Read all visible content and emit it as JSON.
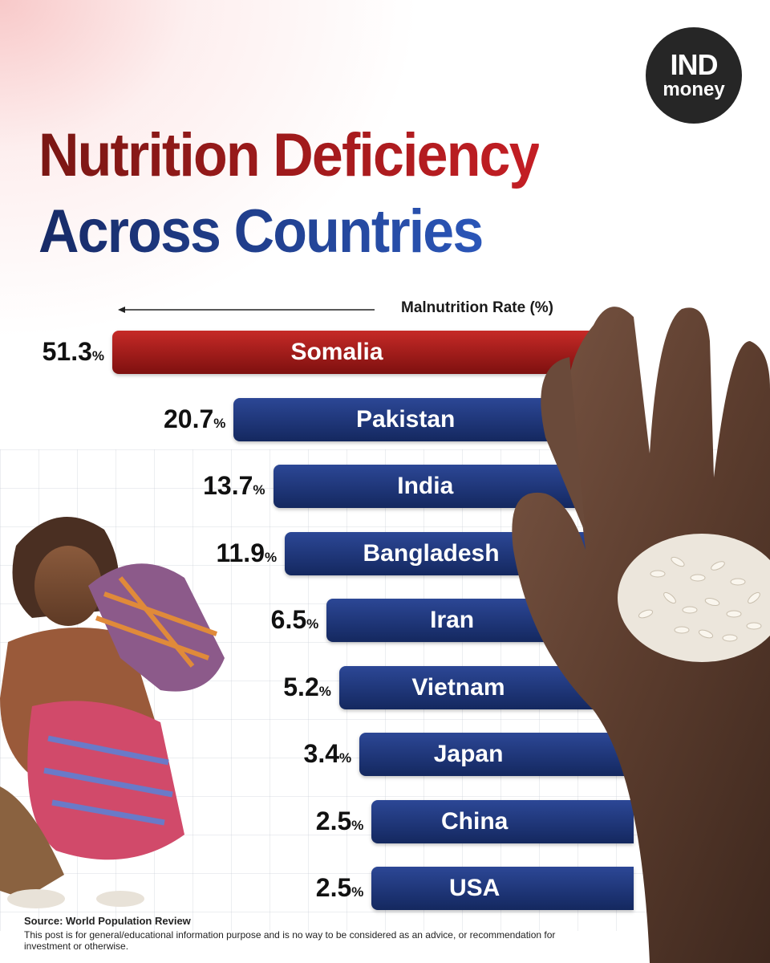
{
  "brand": {
    "logo_top": "IND",
    "logo_bottom": "money"
  },
  "title": {
    "line1": "Nutrition Deficiency",
    "line2": "Across Countries"
  },
  "chart_data": {
    "type": "bar",
    "orientation": "horizontal",
    "title": "Nutrition Deficiency Across Countries",
    "axis_label": "Malnutrition Rate (%)",
    "categories": [
      "Somalia",
      "Pakistan",
      "India",
      "Bangladesh",
      "Iran",
      "Vietnam",
      "Japan",
      "China",
      "USA"
    ],
    "values": [
      51.3,
      20.7,
      13.7,
      11.9,
      6.5,
      5.2,
      3.4,
      2.5,
      2.5
    ],
    "value_labels": [
      "51.3",
      "20.7",
      "13.7",
      "11.9",
      "6.5",
      "5.2",
      "3.4",
      "2.5",
      "2.5"
    ],
    "unit_suffix": "%",
    "highlight_category": "Somalia",
    "colors": {
      "highlight": "#a51d1c",
      "default": "#1f3a85"
    }
  },
  "footer": {
    "source": "Source: World Population Review",
    "disclaimer": "This post is for general/educational information purpose and is no way to be considered as an advice, or recommendation for investment or otherwise."
  }
}
